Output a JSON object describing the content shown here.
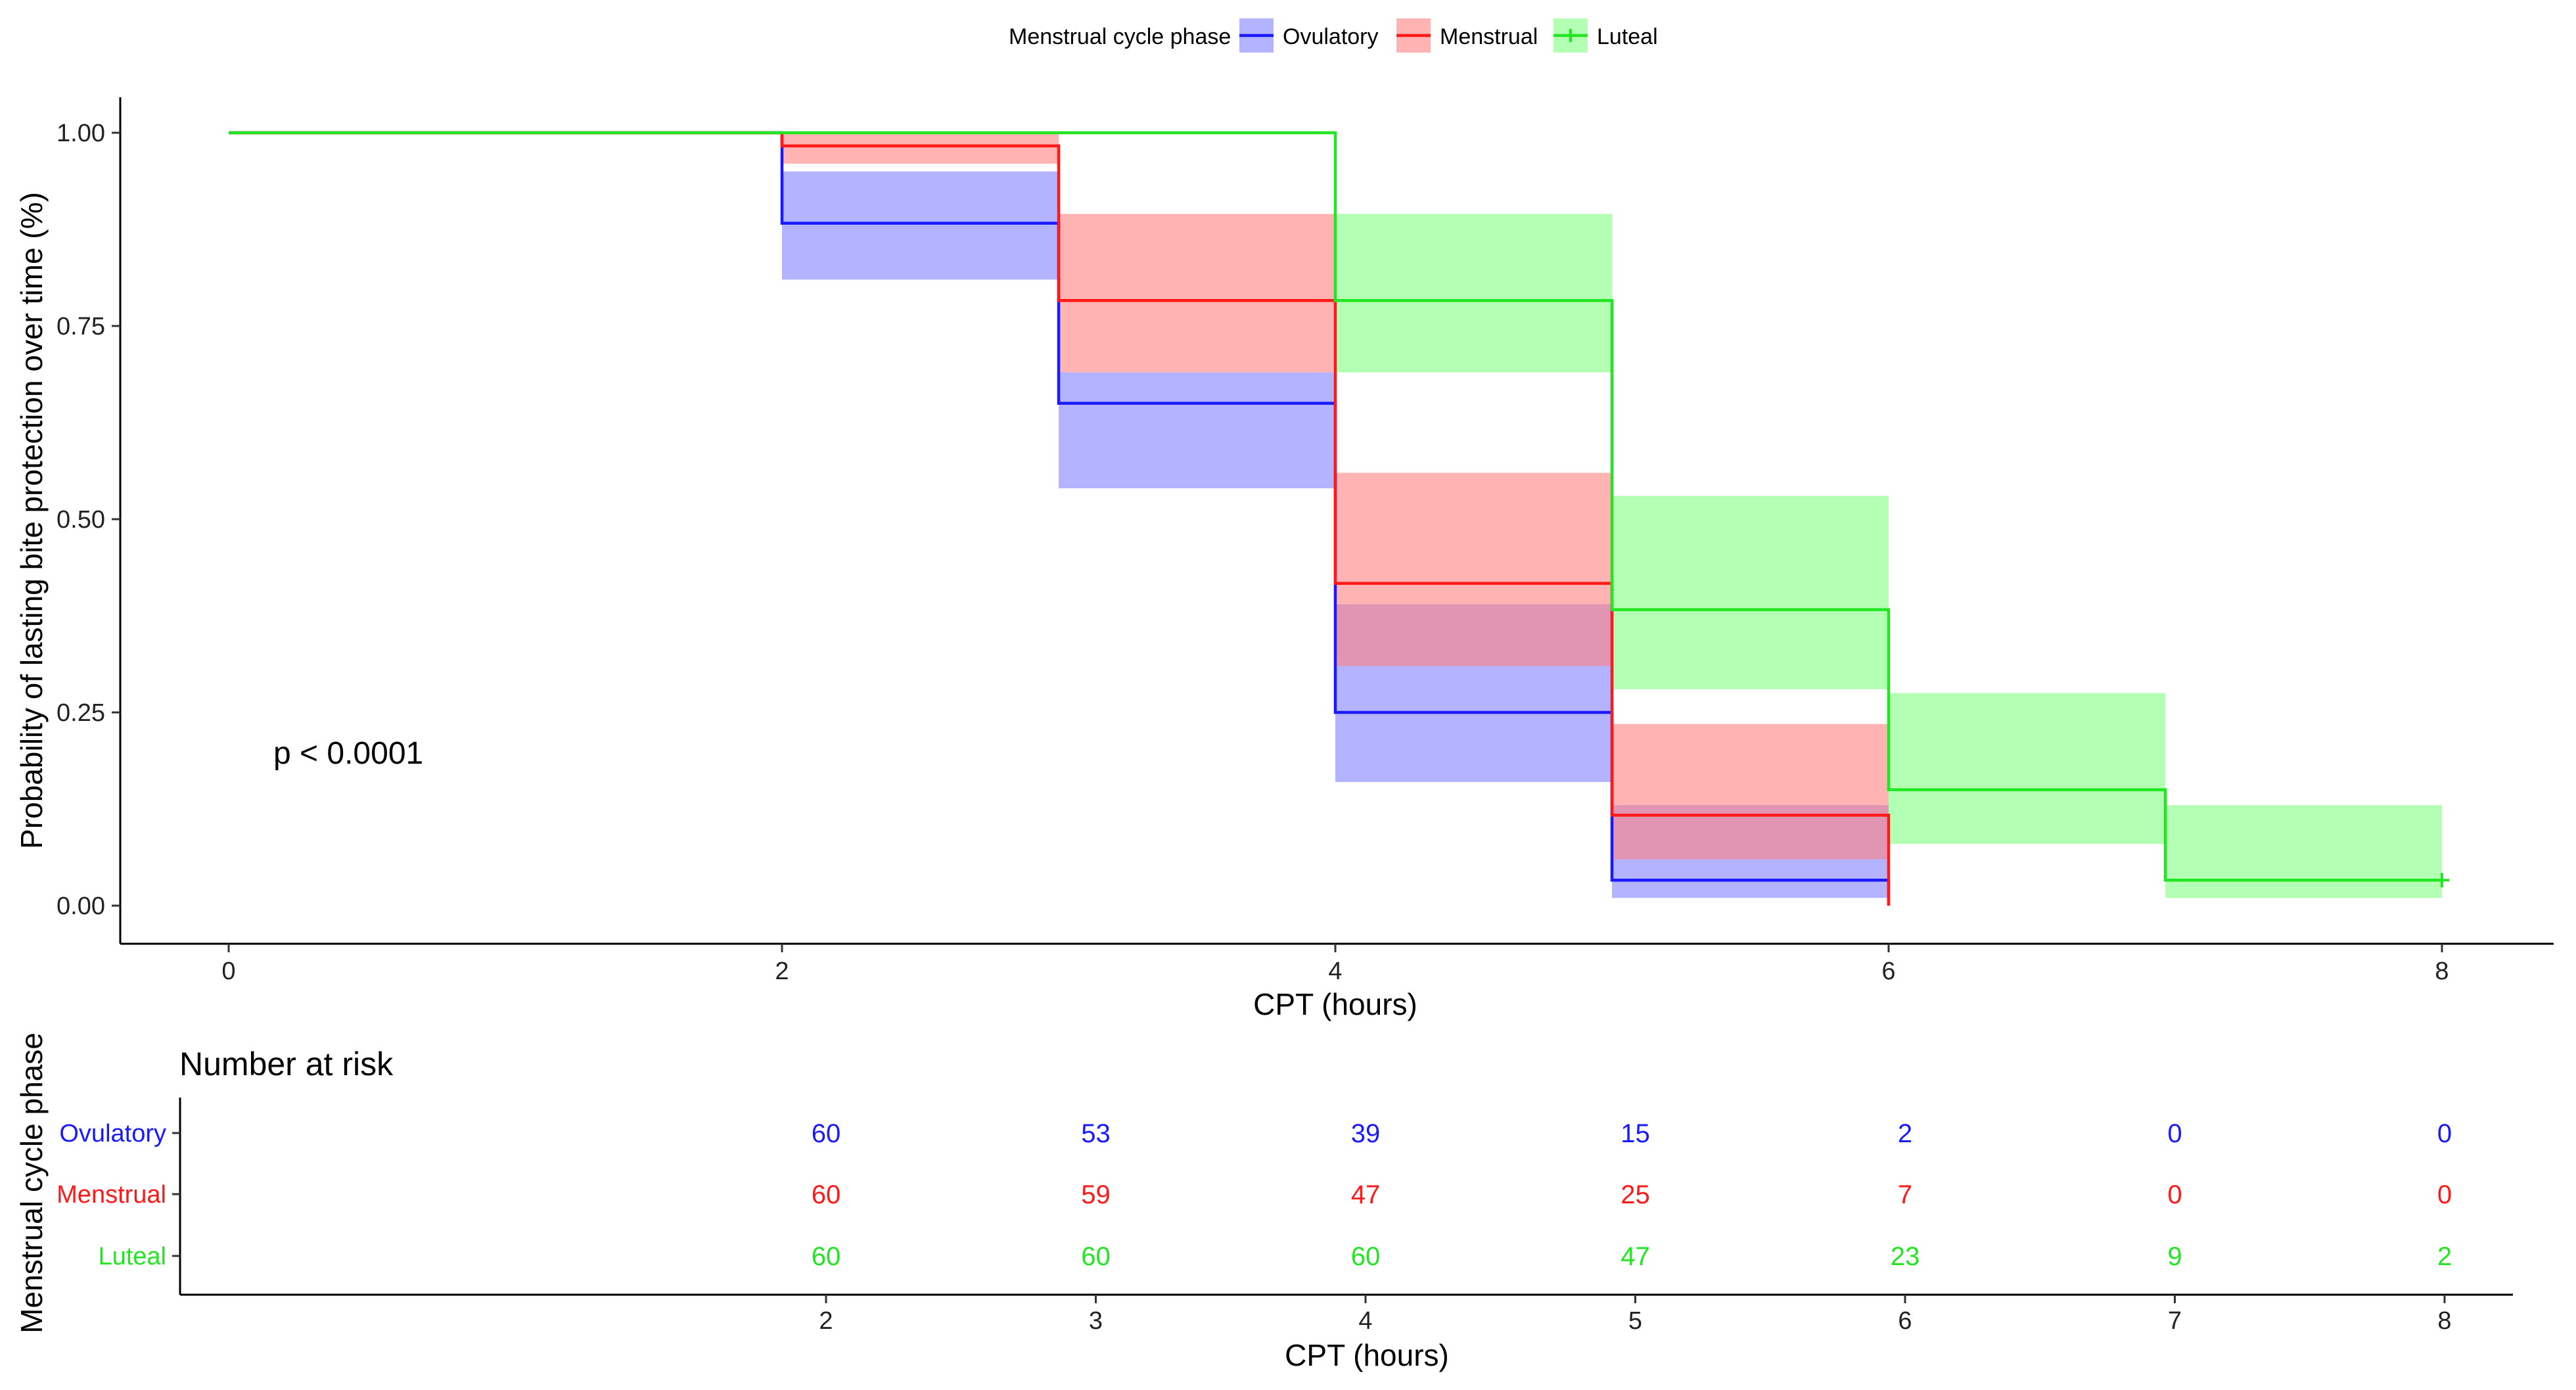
{
  "legend": {
    "title": "Menstrual cycle phase"
  },
  "annotation": {
    "p_value": "p < 0.0001"
  },
  "risk_table": {
    "title": "Number at risk",
    "y_title": "Menstrual cycle phase",
    "x_title": "CPT (hours)",
    "times": [
      2,
      3,
      4,
      5,
      6,
      7,
      8
    ],
    "rows": [
      {
        "name": "Ovulatory",
        "color": "#1a1aff",
        "values": [
          60,
          53,
          39,
          15,
          2,
          0,
          0
        ]
      },
      {
        "name": "Menstrual",
        "color": "#ff1a1a",
        "values": [
          60,
          59,
          47,
          25,
          7,
          0,
          0
        ]
      },
      {
        "name": "Luteal",
        "color": "#22e622",
        "values": [
          60,
          60,
          60,
          47,
          23,
          9,
          2
        ]
      }
    ]
  },
  "chart_data": {
    "type": "line",
    "subtype": "kaplan-meier-step",
    "xlabel": "CPT (hours)",
    "ylabel": "Probability of lasting bite protection over time (%)",
    "xlim": [
      0,
      8
    ],
    "ylim": [
      0,
      1
    ],
    "xticks": [
      0,
      2,
      4,
      6,
      8
    ],
    "yticks": [
      0.0,
      0.25,
      0.5,
      0.75,
      1.0
    ],
    "ytick_labels": [
      "0.00",
      "0.25",
      "0.50",
      "0.75",
      "1.00"
    ],
    "legend_position": "top",
    "series": [
      {
        "name": "Ovulatory",
        "color": "#1a1aff",
        "fill": "#8080ff",
        "x": [
          0,
          2,
          3,
          4,
          5,
          6
        ],
        "y": [
          1.0,
          0.883,
          0.65,
          0.25,
          0.033,
          0.033
        ],
        "ci": [
          {
            "x0": 2,
            "x1": 3,
            "lo": 0.81,
            "hi": 0.95
          },
          {
            "x0": 3,
            "x1": 4,
            "lo": 0.54,
            "hi": 0.69
          },
          {
            "x0": 4,
            "x1": 5,
            "lo": 0.16,
            "hi": 0.39
          },
          {
            "x0": 5,
            "x1": 6,
            "lo": 0.01,
            "hi": 0.13
          }
        ],
        "end_x": 6,
        "end_y": 0.0
      },
      {
        "name": "Menstrual",
        "color": "#ff1a1a",
        "fill": "#ff8080",
        "x": [
          0,
          2,
          3,
          4,
          5,
          6
        ],
        "y": [
          1.0,
          0.983,
          0.783,
          0.417,
          0.117,
          0.117
        ],
        "ci": [
          {
            "x0": 2,
            "x1": 3,
            "lo": 0.96,
            "hi": 1.0
          },
          {
            "x0": 3,
            "x1": 4,
            "lo": 0.69,
            "hi": 0.895
          },
          {
            "x0": 4,
            "x1": 5,
            "lo": 0.31,
            "hi": 0.56
          },
          {
            "x0": 5,
            "x1": 6,
            "lo": 0.06,
            "hi": 0.235
          }
        ],
        "end_x": 6,
        "end_y": 0.0
      },
      {
        "name": "Luteal",
        "color": "#22e622",
        "fill": "#80ff80",
        "x": [
          0,
          4,
          5,
          6,
          7,
          8
        ],
        "y": [
          1.0,
          0.783,
          0.383,
          0.15,
          0.033,
          0.033
        ],
        "ci": [
          {
            "x0": 4,
            "x1": 5,
            "lo": 0.69,
            "hi": 0.895
          },
          {
            "x0": 5,
            "x1": 6,
            "lo": 0.28,
            "hi": 0.53
          },
          {
            "x0": 6,
            "x1": 7,
            "lo": 0.08,
            "hi": 0.275
          },
          {
            "x0": 7,
            "x1": 8,
            "lo": 0.01,
            "hi": 0.13
          }
        ],
        "end_x": 8,
        "end_y": 0.033,
        "censor_mark_at": [
          8,
          0.033
        ]
      }
    ]
  }
}
